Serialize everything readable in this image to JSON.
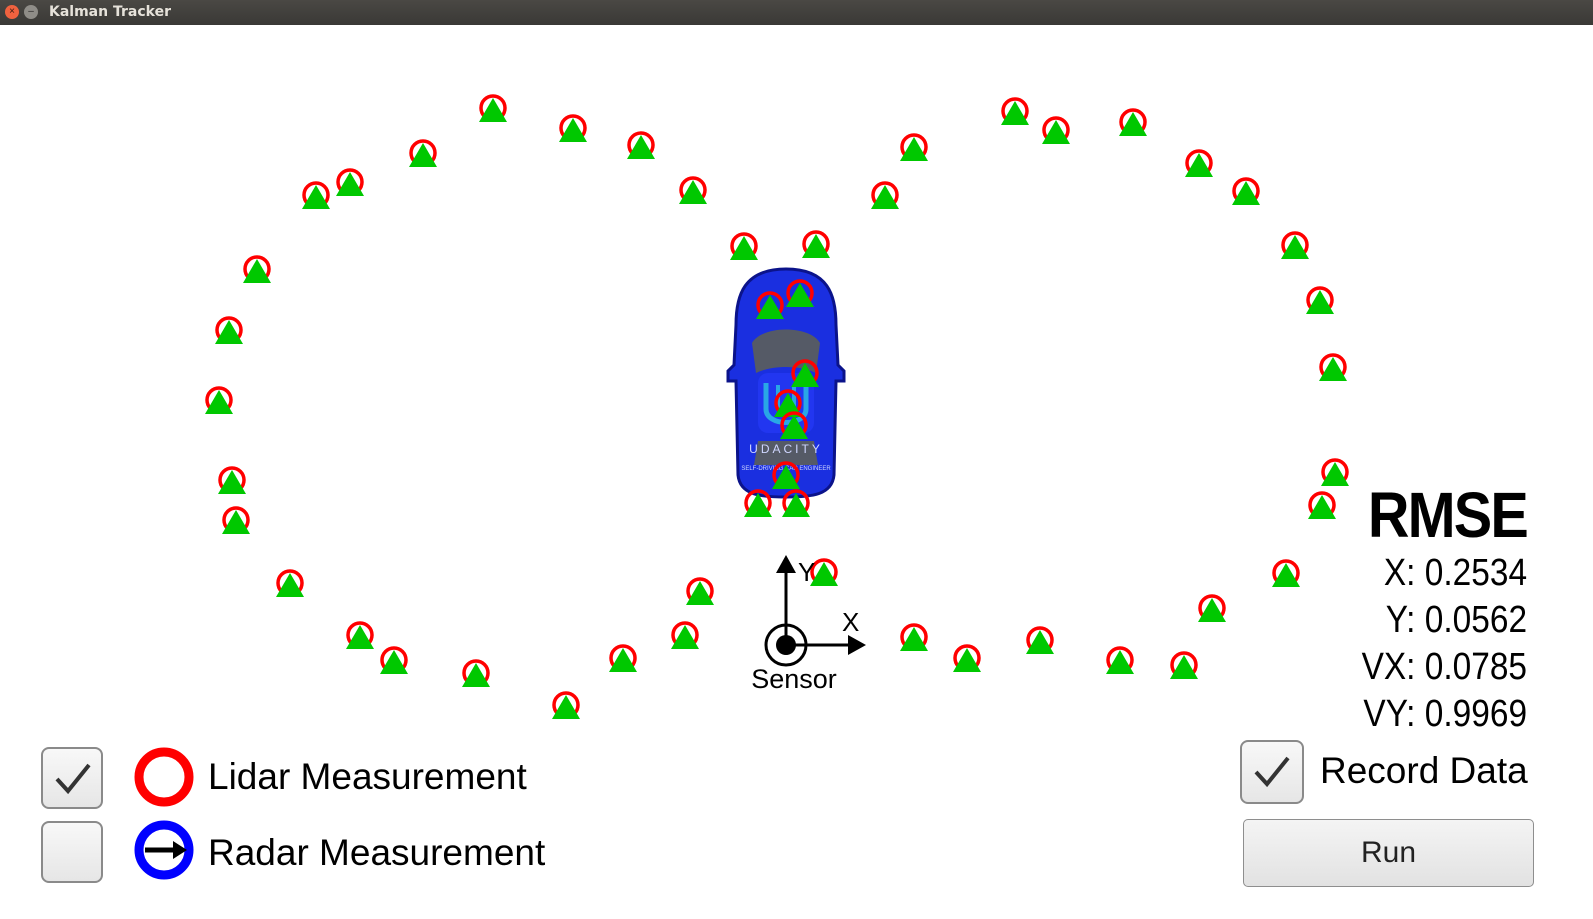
{
  "window": {
    "title": "Kalman Tracker"
  },
  "colors": {
    "lidar": "#ff0000",
    "radar": "#0000ff",
    "estimate": "#00c800",
    "car": "#1a2fe0"
  },
  "scene": {
    "car_icon": "udacity-car-icon",
    "car_text": "UDACITY",
    "car_subtext": "SELF-DRIVING CAR ENGINEER",
    "axis_x_label": "X",
    "axis_y_label": "Y",
    "sensor_label": "Sensor"
  },
  "rmse": {
    "title": "RMSE",
    "x": "X: 0.2534",
    "y": "Y: 0.0562",
    "vx": "VX: 0.0785",
    "vy": "VY: 0.9969"
  },
  "legend": {
    "lidar": {
      "label": "Lidar Measurement",
      "checked": true
    },
    "radar": {
      "label": "Radar Measurement",
      "checked": false
    }
  },
  "controls": {
    "record_label": "Record Data",
    "record_checked": true,
    "run_label": "Run"
  }
}
